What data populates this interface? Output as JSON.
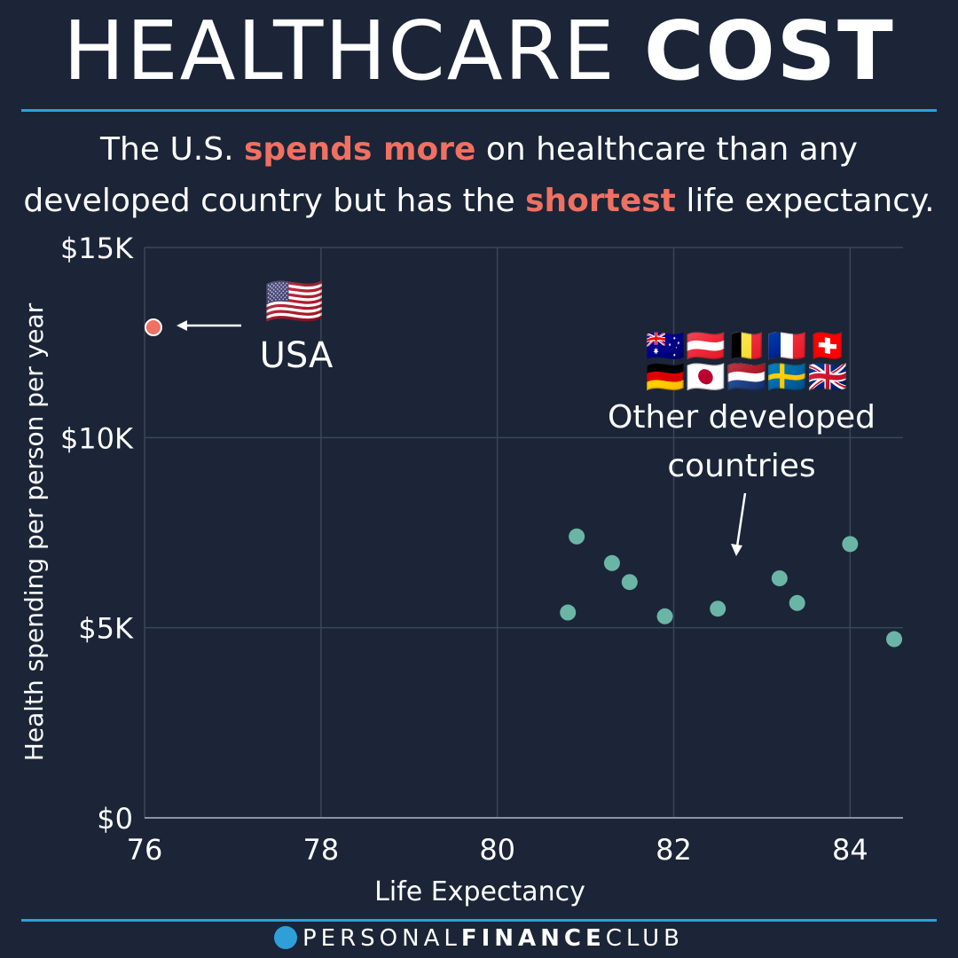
{
  "header": {
    "title_light": "HEALTHCARE",
    "title_bold": "COST",
    "subtitle_1a": "The U.S. ",
    "subtitle_1b": "spends more",
    "subtitle_1c": " on healthcare than any",
    "subtitle_2a": "developed country but has the ",
    "subtitle_2b": "shortest",
    "subtitle_2c": " life expectancy."
  },
  "colors": {
    "background": "#1b2537",
    "accent": "#2e9fd8",
    "highlight": "#f07061",
    "other_points": "#6bb5a6",
    "grid": "#3b4659"
  },
  "annotations": {
    "usa_label": "USA",
    "usa_flag": "🇺🇸",
    "others_label_1": "Other developed",
    "others_label_2": "countries",
    "others_flags_row1": "🇦🇺🇦🇹🇧🇪🇫🇷🇨🇭",
    "others_flags_row2": "🇩🇪🇯🇵🇳🇱🇸🇪🇬🇧"
  },
  "chart_data": {
    "type": "scatter",
    "title": "",
    "xlabel": "Life Expectancy",
    "ylabel": "Health spending per person per year",
    "xlim": [
      76,
      84.6
    ],
    "ylim": [
      0,
      15000
    ],
    "x_ticks": [
      76,
      78,
      80,
      82,
      84
    ],
    "y_ticks": [
      0,
      5000,
      10000,
      15000
    ],
    "y_tick_labels": [
      "$0",
      "$5K",
      "$10K",
      "$15K"
    ],
    "grid": true,
    "series": [
      {
        "name": "USA",
        "color": "#f07061",
        "points": [
          [
            76.1,
            12900
          ]
        ]
      },
      {
        "name": "Other developed countries",
        "color": "#6bb5a6",
        "points": [
          [
            80.8,
            5400
          ],
          [
            80.9,
            7400
          ],
          [
            81.3,
            6700
          ],
          [
            81.5,
            6200
          ],
          [
            81.9,
            5300
          ],
          [
            82.5,
            5500
          ],
          [
            83.2,
            6300
          ],
          [
            83.4,
            5650
          ],
          [
            84.0,
            7200
          ],
          [
            84.5,
            4700
          ]
        ]
      }
    ]
  },
  "footer": {
    "brand_light_1": "PERSONAL",
    "brand_bold": "FINANCE",
    "brand_light_2": "CLUB"
  }
}
